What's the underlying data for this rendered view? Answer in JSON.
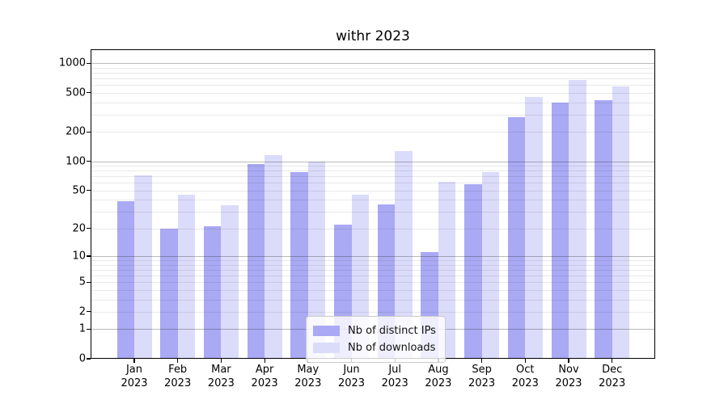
{
  "chart_data": {
    "type": "bar",
    "title": "withr 2023",
    "categories": [
      "Jan",
      "Feb",
      "Mar",
      "Apr",
      "May",
      "Jun",
      "Jul",
      "Aug",
      "Sep",
      "Oct",
      "Nov",
      "Dec"
    ],
    "category_year": "2023",
    "series": [
      {
        "name": "Nb of distinct IPs",
        "color": "#a9a9f4",
        "values": [
          39,
          20,
          21,
          94,
          77,
          22,
          36,
          11,
          58,
          280,
          400,
          418
        ]
      },
      {
        "name": "Nb of downloads",
        "color": "#dbdbfa",
        "values": [
          72,
          45,
          35,
          115,
          100,
          45,
          127,
          62,
          77,
          455,
          680,
          584
        ]
      }
    ],
    "xlabel": "",
    "ylabel": "",
    "yscale": "log1p",
    "ylim": [
      0,
      1381
    ],
    "yticks": [
      {
        "v": 0,
        "label": "0"
      },
      {
        "v": 1,
        "label": "1"
      },
      {
        "v": 2,
        "label": "2"
      },
      {
        "v": 5,
        "label": "5"
      },
      {
        "v": 10,
        "label": "10"
      },
      {
        "v": 20,
        "label": "20"
      },
      {
        "v": 50,
        "label": "50"
      },
      {
        "v": 100,
        "label": "100"
      },
      {
        "v": 200,
        "label": "200"
      },
      {
        "v": 500,
        "label": "500"
      },
      {
        "v": 1000,
        "label": "1000"
      }
    ],
    "major_grid_values": [
      1,
      10,
      100,
      1000
    ],
    "minor_grid_values": [
      2,
      3,
      4,
      5,
      6,
      7,
      8,
      9,
      20,
      30,
      40,
      50,
      60,
      70,
      80,
      90,
      200,
      300,
      400,
      500,
      600,
      700,
      800,
      900
    ],
    "grid": "both",
    "legend_position": "lower-center"
  }
}
